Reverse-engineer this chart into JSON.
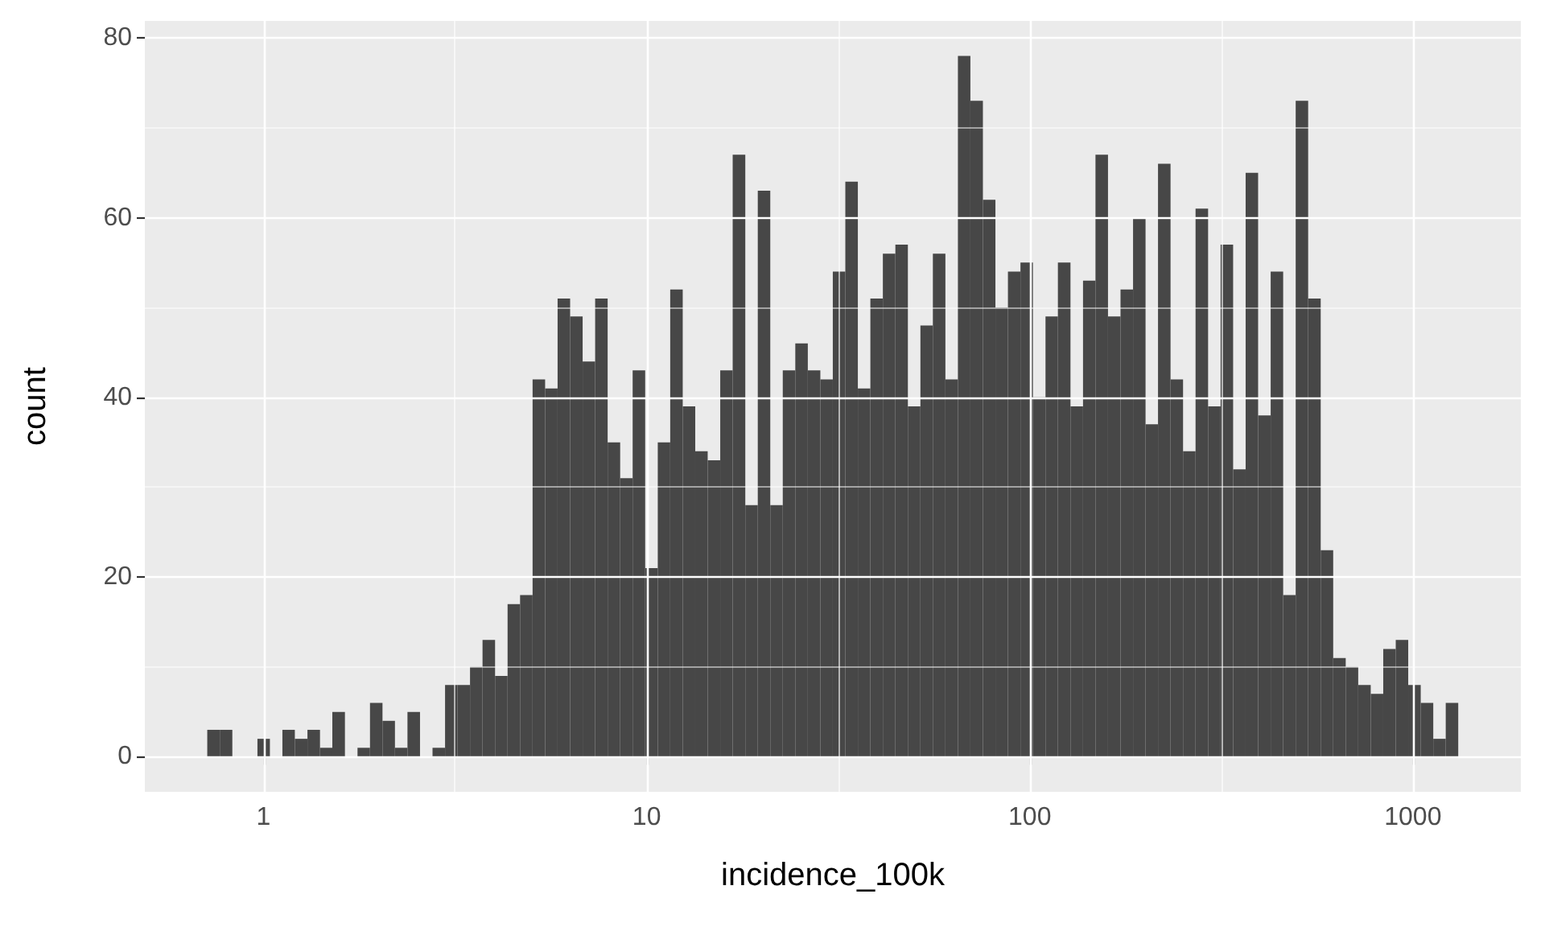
{
  "chart_data": {
    "type": "histogram",
    "xlabel": "incidence_100k",
    "ylabel": "count",
    "color": "#474747",
    "log": "x",
    "grid": true,
    "bins": [
      0.713,
      0.769,
      0.829,
      0.894,
      0.964,
      1.039,
      1.12,
      1.207,
      1.302,
      1.404,
      1.512,
      1.631,
      1.759,
      1.896,
      2.044,
      2.203,
      2.375,
      2.561,
      2.761,
      2.977,
      3.209,
      3.459,
      3.729,
      4.021,
      4.335,
      4.673,
      5.038,
      5.432,
      5.855,
      6.313,
      6.806,
      7.337,
      7.91,
      8.528,
      9.192,
      9.911,
      10.69,
      11.52,
      12.42,
      13.39,
      14.43,
      15.56,
      16.77,
      18.09,
      19.5,
      21.02,
      22.66,
      24.43,
      26.34,
      28.4,
      30.61,
      33.0,
      35.58,
      38.36,
      41.35,
      44.58,
      48.06,
      51.82,
      55.85,
      60.22,
      64.92,
      69.98,
      75.44,
      81.34,
      87.69,
      94.54,
      101.9,
      109.9,
      118.4,
      127.7,
      137.7,
      148.4,
      160.0,
      172.5,
      186.0,
      200.5,
      216.1,
      233.0,
      251.2,
      270.8,
      292.0,
      314.8,
      339.4,
      365.9,
      394.4,
      425.3,
      458.5,
      494.3,
      532.8,
      574.5,
      619.3,
      667.7,
      719.8,
      776.0,
      836.6,
      901.9,
      972.1,
      1048,
      1130,
      1218,
      1313
    ],
    "values": [
      3,
      3,
      0,
      0,
      2,
      0,
      3,
      2,
      3,
      1,
      5,
      0,
      1,
      6,
      4,
      1,
      5,
      0,
      1,
      8,
      8,
      10,
      13,
      9,
      17,
      18,
      42,
      41,
      51,
      49,
      44,
      51,
      35,
      31,
      43,
      21,
      35,
      52,
      39,
      34,
      33,
      43,
      67,
      28,
      63,
      28,
      43,
      46,
      43,
      42,
      54,
      64,
      41,
      51,
      56,
      57,
      39,
      48,
      56,
      42,
      78,
      73,
      62,
      50,
      54,
      55,
      40,
      49,
      55,
      39,
      53,
      67,
      49,
      52,
      60,
      37,
      66,
      42,
      34,
      61,
      39,
      57,
      32,
      65,
      38,
      54,
      18,
      73,
      51,
      23,
      11,
      10,
      8,
      7,
      12,
      13,
      8,
      6,
      2,
      6
    ],
    "xlim": [
      0.49,
      1913
    ],
    "ylim": [
      -3.9,
      81.9
    ],
    "xticks": [
      1,
      {
        "value": 3.162,
        "label": null
      },
      10,
      {
        "value": 31.62,
        "label": null
      },
      100,
      {
        "value": 316.2,
        "label": null
      },
      1000
    ],
    "yticks": [
      0,
      {
        "value": 10,
        "label": null
      },
      20,
      {
        "value": 30,
        "label": null
      },
      40,
      {
        "value": 50,
        "label": null
      },
      60,
      {
        "value": 70,
        "label": null
      },
      80
    ]
  }
}
